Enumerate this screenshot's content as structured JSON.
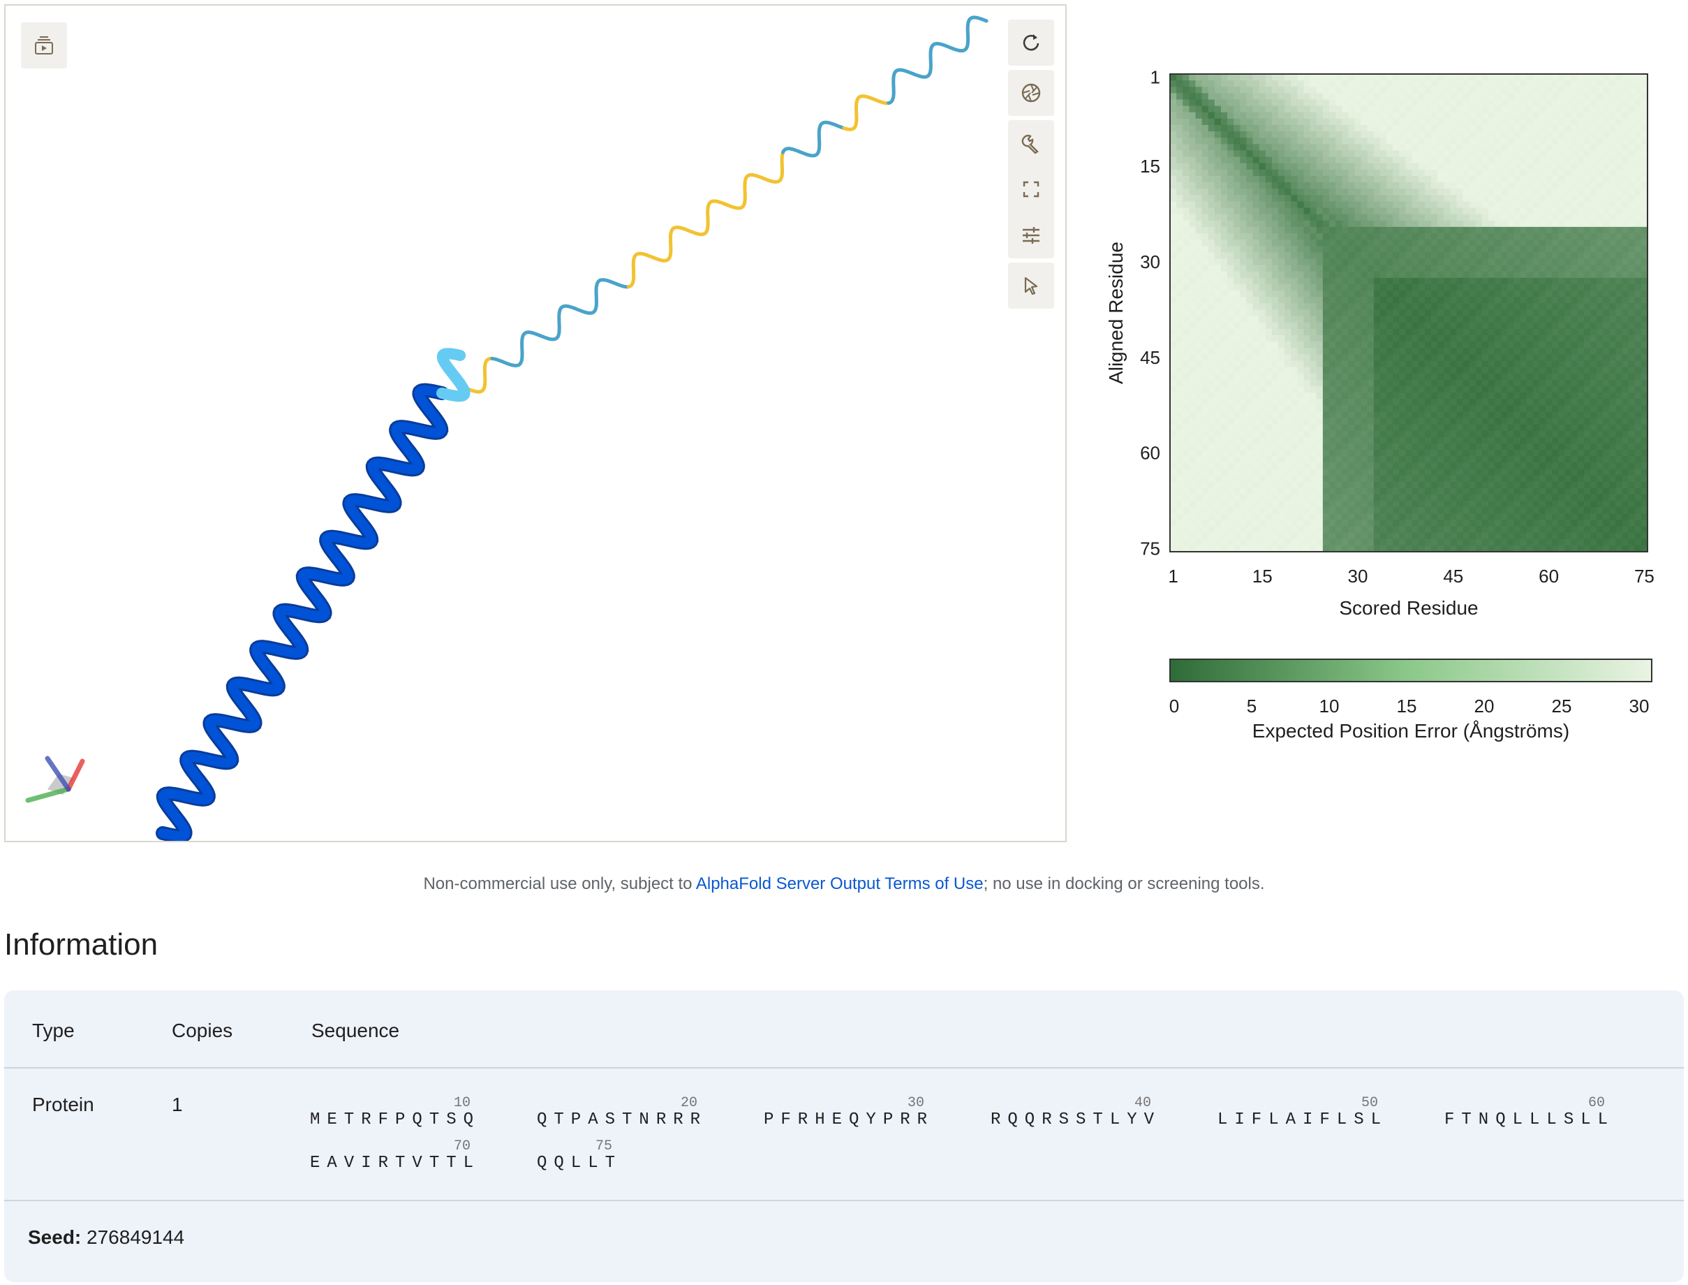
{
  "viewer": {
    "left_button_icon": "animation-player-icon",
    "toolbar": [
      {
        "icon": "reset-rotate-icon"
      },
      {
        "icon": "camera-shutter-icon"
      },
      {
        "icon": "wrench-icon"
      },
      {
        "icon": "fullscreen-icon"
      },
      {
        "icon": "tune-sliders-icon"
      },
      {
        "icon": "pointer-select-icon"
      }
    ],
    "structure_colors": [
      "#0053d6",
      "#65cbf3",
      "#4aa3c9",
      "#f2c232"
    ],
    "axes_colors": {
      "x": "#4caf50",
      "y": "#e53935",
      "z": "#3f51b5"
    }
  },
  "pae": {
    "chart_data": {
      "type": "heatmap",
      "n_residues": 75,
      "xlabel": "Scored Residue",
      "ylabel": "Aligned Residue",
      "x_ticks": [
        "1",
        "15",
        "30",
        "45",
        "60",
        "75"
      ],
      "y_ticks": [
        "1",
        "15",
        "30",
        "45",
        "60",
        "75"
      ],
      "colorbar": {
        "label": "Expected Position Error (Ångströms)",
        "ticks": [
          "0",
          "5",
          "10",
          "15",
          "20",
          "25",
          "30"
        ],
        "range": [
          0,
          30
        ],
        "colors": [
          "#2e6b37",
          "#eaf4e3"
        ]
      },
      "description_of_values": "low error (dark green) on diagonal and in block for residues ~25-75; high error (pale) for residues 1-25 vs 25-75"
    }
  },
  "notice": {
    "before": "Non-commercial use only, subject to ",
    "link": "AlphaFold Server Output Terms of Use",
    "after": "; no use in docking or screening tools."
  },
  "information": {
    "title": "Information",
    "headers": {
      "type": "Type",
      "copies": "Copies",
      "sequence": "Sequence"
    },
    "row": {
      "type": "Protein",
      "copies": "1"
    },
    "sequence_chunks": [
      {
        "num": "10",
        "res": "METRFPQTSQ"
      },
      {
        "num": "20",
        "res": "QTPASTNRRR"
      },
      {
        "num": "30",
        "res": "PFRHEQYPRR"
      },
      {
        "num": "40",
        "res": "RQQRSSTLYV"
      },
      {
        "num": "50",
        "res": "LIFLAIFLSL"
      },
      {
        "num": "60",
        "res": "FTNQLLLSLL"
      },
      {
        "num": "70",
        "res": "EAVIRTVTTL"
      },
      {
        "num": "75",
        "res": "QQLLT"
      }
    ],
    "seed_label": "Seed:",
    "seed_value": "276849144"
  }
}
